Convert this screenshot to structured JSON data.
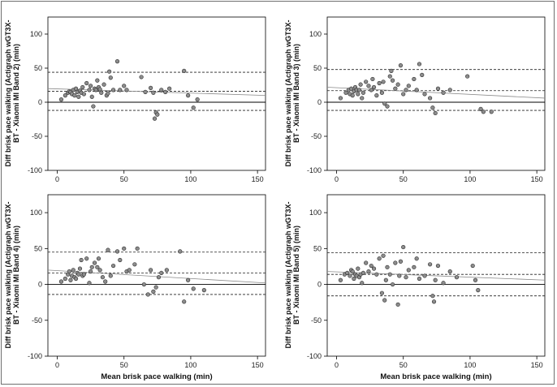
{
  "chart_data": [
    {
      "type": "scatter",
      "ylabel_lines": [
        "Diff brisk pace walking (Actigraph wGT3X-",
        "BT - Xiaomi MI Band 2) (min)"
      ],
      "xlabel": "",
      "xlim": [
        -7,
        156
      ],
      "ylim": [
        -100,
        125
      ],
      "xticks": [
        0,
        50,
        100,
        150
      ],
      "yticks": [
        -100,
        -50,
        0,
        50,
        100
      ],
      "mean_diff": 16,
      "loa_upper": 44,
      "loa_lower": -12,
      "regression": {
        "x0": -7,
        "y0": 20,
        "x1": 156,
        "y1": 10
      },
      "points": [
        [
          3,
          4
        ],
        [
          6,
          10
        ],
        [
          8,
          14
        ],
        [
          9,
          16
        ],
        [
          10,
          15
        ],
        [
          11,
          12
        ],
        [
          12,
          18
        ],
        [
          13,
          10
        ],
        [
          14,
          20
        ],
        [
          15,
          15
        ],
        [
          16,
          8
        ],
        [
          17,
          17
        ],
        [
          18,
          14
        ],
        [
          19,
          22
        ],
        [
          20,
          12
        ],
        [
          22,
          28
        ],
        [
          24,
          18
        ],
        [
          25,
          24
        ],
        [
          26,
          8
        ],
        [
          27,
          -6
        ],
        [
          28,
          20
        ],
        [
          29,
          18
        ],
        [
          30,
          32
        ],
        [
          31,
          22
        ],
        [
          32,
          19
        ],
        [
          33,
          14
        ],
        [
          35,
          26
        ],
        [
          37,
          10
        ],
        [
          38,
          13
        ],
        [
          39,
          45
        ],
        [
          40,
          36
        ],
        [
          42,
          18
        ],
        [
          45,
          60
        ],
        [
          47,
          18
        ],
        [
          50,
          24
        ],
        [
          52,
          18
        ],
        [
          63,
          37
        ],
        [
          66,
          15
        ],
        [
          70,
          21
        ],
        [
          72,
          14
        ],
        [
          73,
          -24
        ],
        [
          74,
          -15
        ],
        [
          75,
          -18
        ],
        [
          78,
          18
        ],
        [
          81,
          15
        ],
        [
          84,
          20
        ],
        [
          95,
          46
        ],
        [
          98,
          10
        ],
        [
          102,
          -8
        ],
        [
          105,
          4
        ]
      ]
    },
    {
      "type": "scatter",
      "ylabel_lines": [
        "Diff brisk pace walking (Actigraph wGT3X-",
        "BT - Xiaomi MI Band 3) (min)"
      ],
      "xlabel": "",
      "xlim": [
        -7,
        156
      ],
      "ylim": [
        -100,
        125
      ],
      "xticks": [
        0,
        50,
        100,
        150
      ],
      "yticks": [
        -100,
        -50,
        0,
        50,
        100
      ],
      "mean_diff": 17,
      "loa_upper": 48,
      "loa_lower": -12,
      "regression": {
        "x0": -7,
        "y0": 22,
        "x1": 156,
        "y1": 6
      },
      "points": [
        [
          3,
          6
        ],
        [
          7,
          14
        ],
        [
          9,
          18
        ],
        [
          10,
          12
        ],
        [
          11,
          20
        ],
        [
          12,
          10
        ],
        [
          13,
          16
        ],
        [
          14,
          22
        ],
        [
          15,
          18
        ],
        [
          16,
          12
        ],
        [
          17,
          18
        ],
        [
          18,
          26
        ],
        [
          19,
          6
        ],
        [
          20,
          14
        ],
        [
          22,
          30
        ],
        [
          24,
          24
        ],
        [
          26,
          18
        ],
        [
          27,
          34
        ],
        [
          28,
          22
        ],
        [
          30,
          10
        ],
        [
          32,
          28
        ],
        [
          34,
          14
        ],
        [
          35,
          30
        ],
        [
          36,
          -2
        ],
        [
          38,
          -6
        ],
        [
          40,
          38
        ],
        [
          41,
          46
        ],
        [
          42,
          32
        ],
        [
          44,
          20
        ],
        [
          46,
          26
        ],
        [
          48,
          54
        ],
        [
          50,
          12
        ],
        [
          52,
          18
        ],
        [
          54,
          24
        ],
        [
          58,
          34
        ],
        [
          60,
          18
        ],
        [
          62,
          56
        ],
        [
          64,
          40
        ],
        [
          66,
          12
        ],
        [
          70,
          6
        ],
        [
          72,
          -8
        ],
        [
          74,
          -16
        ],
        [
          76,
          20
        ],
        [
          80,
          14
        ],
        [
          85,
          18
        ],
        [
          98,
          38
        ],
        [
          108,
          -10
        ],
        [
          110,
          -14
        ],
        [
          116,
          -14
        ]
      ]
    },
    {
      "type": "scatter",
      "ylabel_lines": [
        "Diff brisk pace walking (Actigraph wGT3X-",
        "BT - Xiaomi MI Band 4) (min)"
      ],
      "xlabel": "Mean brisk pace walking (min)",
      "xlim": [
        -7,
        156
      ],
      "ylim": [
        -100,
        125
      ],
      "xticks": [
        0,
        50,
        100,
        150
      ],
      "yticks": [
        -100,
        -50,
        0,
        50,
        100
      ],
      "mean_diff": 16,
      "loa_upper": 45,
      "loa_lower": -14,
      "regression": {
        "x0": -7,
        "y0": 20,
        "x1": 156,
        "y1": 2
      },
      "points": [
        [
          3,
          4
        ],
        [
          6,
          8
        ],
        [
          8,
          14
        ],
        [
          9,
          18
        ],
        [
          10,
          6
        ],
        [
          11,
          12
        ],
        [
          12,
          20
        ],
        [
          13,
          10
        ],
        [
          14,
          8
        ],
        [
          15,
          16
        ],
        [
          16,
          14
        ],
        [
          17,
          22
        ],
        [
          18,
          34
        ],
        [
          19,
          12
        ],
        [
          20,
          14
        ],
        [
          22,
          36
        ],
        [
          24,
          2
        ],
        [
          25,
          18
        ],
        [
          26,
          24
        ],
        [
          28,
          30
        ],
        [
          30,
          24
        ],
        [
          31,
          36
        ],
        [
          32,
          20
        ],
        [
          34,
          10
        ],
        [
          36,
          4
        ],
        [
          38,
          48
        ],
        [
          40,
          12
        ],
        [
          42,
          26
        ],
        [
          45,
          46
        ],
        [
          47,
          34
        ],
        [
          50,
          50
        ],
        [
          52,
          18
        ],
        [
          54,
          20
        ],
        [
          58,
          28
        ],
        [
          60,
          50
        ],
        [
          65,
          0
        ],
        [
          68,
          -14
        ],
        [
          70,
          20
        ],
        [
          72,
          -10
        ],
        [
          74,
          -4
        ],
        [
          76,
          10
        ],
        [
          78,
          16
        ],
        [
          82,
          20
        ],
        [
          92,
          46
        ],
        [
          95,
          -24
        ],
        [
          98,
          6
        ],
        [
          102,
          -6
        ],
        [
          110,
          -8
        ]
      ]
    },
    {
      "type": "scatter",
      "ylabel_lines": [
        "Diff brisk pace walking (Actigraph wGT3X-",
        "BT - Xiaomi MI Band 5) (min)"
      ],
      "xlabel": "Mean brisk pace walking (min)",
      "xlim": [
        -7,
        156
      ],
      "ylim": [
        -100,
        125
      ],
      "xticks": [
        0,
        50,
        100,
        150
      ],
      "yticks": [
        -100,
        -50,
        0,
        50,
        100
      ],
      "mean_diff": 14,
      "loa_upper": 44,
      "loa_lower": -16,
      "regression": {
        "x0": -7,
        "y0": 18,
        "x1": 156,
        "y1": 6
      },
      "points": [
        [
          3,
          6
        ],
        [
          6,
          14
        ],
        [
          8,
          16
        ],
        [
          10,
          12
        ],
        [
          11,
          20
        ],
        [
          12,
          18
        ],
        [
          13,
          8
        ],
        [
          14,
          14
        ],
        [
          15,
          12
        ],
        [
          16,
          22
        ],
        [
          17,
          10
        ],
        [
          18,
          14
        ],
        [
          19,
          2
        ],
        [
          20,
          16
        ],
        [
          22,
          30
        ],
        [
          24,
          18
        ],
        [
          26,
          26
        ],
        [
          28,
          22
        ],
        [
          30,
          14
        ],
        [
          32,
          36
        ],
        [
          34,
          -12
        ],
        [
          35,
          40
        ],
        [
          36,
          -22
        ],
        [
          37,
          6
        ],
        [
          38,
          24
        ],
        [
          40,
          14
        ],
        [
          42,
          0
        ],
        [
          44,
          30
        ],
        [
          46,
          -28
        ],
        [
          47,
          12
        ],
        [
          48,
          32
        ],
        [
          50,
          52
        ],
        [
          52,
          10
        ],
        [
          54,
          20
        ],
        [
          58,
          24
        ],
        [
          60,
          36
        ],
        [
          62,
          8
        ],
        [
          66,
          12
        ],
        [
          70,
          28
        ],
        [
          72,
          -16
        ],
        [
          73,
          -24
        ],
        [
          74,
          6
        ],
        [
          76,
          26
        ],
        [
          80,
          2
        ],
        [
          85,
          18
        ],
        [
          90,
          10
        ],
        [
          102,
          26
        ],
        [
          104,
          6
        ],
        [
          106,
          -8
        ]
      ]
    }
  ]
}
